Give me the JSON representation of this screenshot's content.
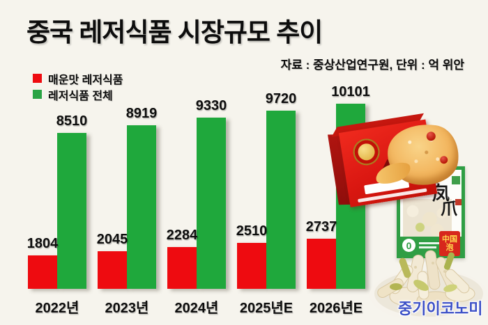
{
  "page": {
    "background": "#f6f4ed"
  },
  "header": {
    "title": "중국 레저식품 시장규모 추이",
    "source": "자료 : 중상산업연구원, 단위 : 억 위안"
  },
  "legend": {
    "items": [
      {
        "label": "매운맛 레저식품",
        "color": "#ee0b10"
      },
      {
        "label": "레저식품 전체",
        "color": "#2aa445"
      }
    ]
  },
  "chart_data": {
    "type": "bar",
    "categories": [
      "2022년",
      "2023년",
      "2024년",
      "2025년E",
      "2026년E"
    ],
    "series": [
      {
        "name": "매운맛 레저식품",
        "color": "#ee0b10",
        "values": [
          1804,
          2045,
          2284,
          2510,
          2737
        ]
      },
      {
        "name": "레저식품 전체",
        "color": "#1fa83c",
        "values": [
          8510,
          8919,
          9330,
          9720,
          10101
        ]
      }
    ],
    "title": "중국 레저식품 시장규모 추이",
    "unit_label": "억 위안",
    "ylim": [
      0,
      10500
    ],
    "grid": false,
    "legend_position": "top-left",
    "value_labels": true
  },
  "products": {
    "pouch_chars": [
      "泡",
      "凤",
      "爪"
    ],
    "pouch_zero": "0",
    "pouch_badge_line1": "中国",
    "pouch_badge_line2": "泡"
  },
  "watermark": {
    "text": "중기이코노미",
    "color": "#3c50c6"
  }
}
